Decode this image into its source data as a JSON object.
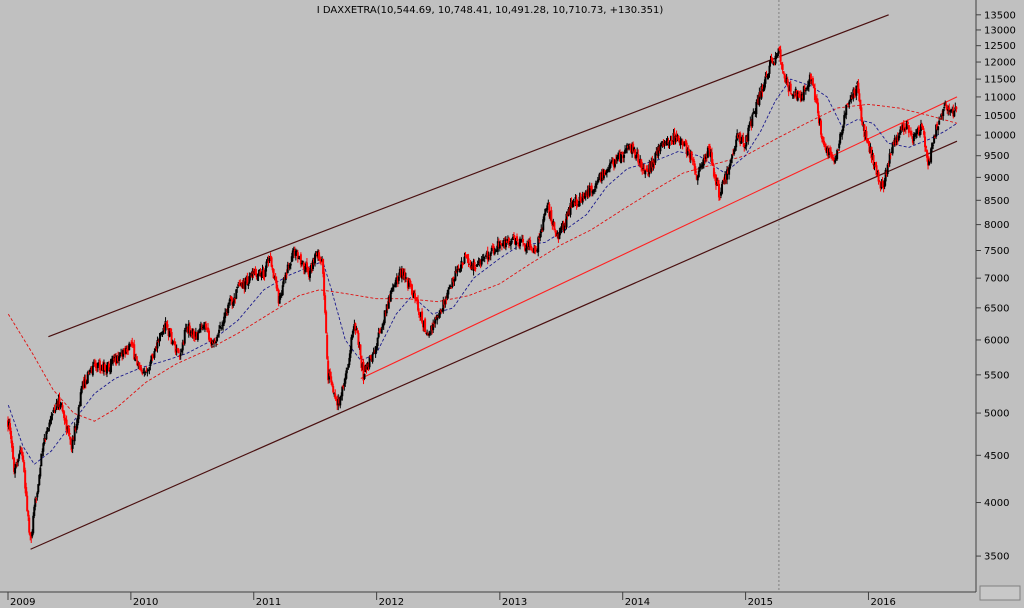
{
  "chart_data": {
    "type": "candlestick",
    "title": "I DAXXETRA(10,544.69, 10,748.41, 10,491.28, 10,710.73, +130.351)",
    "x_tick_labels": [
      "2009",
      "2010",
      "2011",
      "2012",
      "2013",
      "2014",
      "2015",
      "2016"
    ],
    "y_tick_labels": [
      "3500",
      "4000",
      "4500",
      "5000",
      "5500",
      "6000",
      "6500",
      "7000",
      "7500",
      "8000",
      "8500",
      "9000",
      "9500",
      "10000",
      "10500",
      "11000",
      "11500",
      "12000",
      "12500",
      "13000",
      "13500"
    ],
    "y_scale": "log",
    "ylim": [
      3200,
      13800
    ],
    "x_range": [
      "2009-01-01",
      "2016-09-20"
    ],
    "grid": false,
    "colors": {
      "background": "#c0c0c0",
      "up_candle": "#000000",
      "down_candle": "#ff0000",
      "ma_short": "#1a1a8c",
      "ma_long": "#e01010",
      "channel_line": "#4a1010",
      "support_line": "#ff2020",
      "marker_line": "#808080"
    },
    "series": [
      {
        "name": "",
        "role": "close_path",
        "points": [
          [
            "2009-01-02",
            4900
          ],
          [
            "2009-01-20",
            4350
          ],
          [
            "2009-02-10",
            4600
          ],
          [
            "2009-03-09",
            3600
          ],
          [
            "2009-03-25",
            4050
          ],
          [
            "2009-04-15",
            4600
          ],
          [
            "2009-05-10",
            5000
          ],
          [
            "2009-06-05",
            5150
          ],
          [
            "2009-07-10",
            4600
          ],
          [
            "2009-08-10",
            5350
          ],
          [
            "2009-09-15",
            5650
          ],
          [
            "2009-10-20",
            5600
          ],
          [
            "2009-11-15",
            5700
          ],
          [
            "2009-12-31",
            5950
          ],
          [
            "2010-02-05",
            5450
          ],
          [
            "2010-04-15",
            6250
          ],
          [
            "2010-05-25",
            5700
          ],
          [
            "2010-06-15",
            6200
          ],
          [
            "2010-07-15",
            6050
          ],
          [
            "2010-08-10",
            6300
          ],
          [
            "2010-08-31",
            5900
          ],
          [
            "2010-10-15",
            6500
          ],
          [
            "2010-11-15",
            6800
          ],
          [
            "2010-12-31",
            7050
          ],
          [
            "2011-01-31",
            7100
          ],
          [
            "2011-02-18",
            7400
          ],
          [
            "2011-03-16",
            6650
          ],
          [
            "2011-04-15",
            7200
          ],
          [
            "2011-05-02",
            7500
          ],
          [
            "2011-06-15",
            7100
          ],
          [
            "2011-07-08",
            7450
          ],
          [
            "2011-07-25",
            7250
          ],
          [
            "2011-08-09",
            5500
          ],
          [
            "2011-09-12",
            5100
          ],
          [
            "2011-10-10",
            5700
          ],
          [
            "2011-10-27",
            6300
          ],
          [
            "2011-11-23",
            5500
          ],
          [
            "2011-12-30",
            5900
          ],
          [
            "2012-02-15",
            6800
          ],
          [
            "2012-03-16",
            7150
          ],
          [
            "2012-04-20",
            6700
          ],
          [
            "2012-06-01",
            6050
          ],
          [
            "2012-07-10",
            6450
          ],
          [
            "2012-08-15",
            6950
          ],
          [
            "2012-09-15",
            7350
          ],
          [
            "2012-10-20",
            7200
          ],
          [
            "2012-12-31",
            7600
          ],
          [
            "2013-02-15",
            7700
          ],
          [
            "2013-04-18",
            7500
          ],
          [
            "2013-05-22",
            8400
          ],
          [
            "2013-06-24",
            7700
          ],
          [
            "2013-08-01",
            8400
          ],
          [
            "2013-09-15",
            8600
          ],
          [
            "2013-11-15",
            9200
          ],
          [
            "2013-12-31",
            9550
          ],
          [
            "2014-01-21",
            9750
          ],
          [
            "2014-03-14",
            9100
          ],
          [
            "2014-04-15",
            9600
          ],
          [
            "2014-06-10",
            10000
          ],
          [
            "2014-07-31",
            9400
          ],
          [
            "2014-08-08",
            9000
          ],
          [
            "2014-09-15",
            9650
          ],
          [
            "2014-10-15",
            8600
          ],
          [
            "2014-11-15",
            9300
          ],
          [
            "2014-12-05",
            10000
          ],
          [
            "2014-12-31",
            9800
          ],
          [
            "2015-01-31",
            10700
          ],
          [
            "2015-03-15",
            11900
          ],
          [
            "2015-04-10",
            12350
          ],
          [
            "2015-05-05",
            11300
          ],
          [
            "2015-06-15",
            11000
          ],
          [
            "2015-07-15",
            11600
          ],
          [
            "2015-08-24",
            9650
          ],
          [
            "2015-09-24",
            9400
          ],
          [
            "2015-10-31",
            10900
          ],
          [
            "2015-11-30",
            11300
          ],
          [
            "2015-12-15",
            10200
          ],
          [
            "2016-01-20",
            9300
          ],
          [
            "2016-02-11",
            8750
          ],
          [
            "2016-03-15",
            9800
          ],
          [
            "2016-04-20",
            10300
          ],
          [
            "2016-05-15",
            9900
          ],
          [
            "2016-06-08",
            10200
          ],
          [
            "2016-06-27",
            9250
          ],
          [
            "2016-07-20",
            10150
          ],
          [
            "2016-08-15",
            10700
          ],
          [
            "2016-09-05",
            10500
          ],
          [
            "2016-09-20",
            10710
          ]
        ]
      },
      {
        "name": "",
        "role": "moving_average_short",
        "points": [
          [
            "2009-01-02",
            5100
          ],
          [
            "2009-02-15",
            4600
          ],
          [
            "2009-03-20",
            4400
          ],
          [
            "2009-05-10",
            4550
          ],
          [
            "2009-07-15",
            4900
          ],
          [
            "2009-09-15",
            5250
          ],
          [
            "2009-11-15",
            5450
          ],
          [
            "2010-02-01",
            5600
          ],
          [
            "2010-04-15",
            5700
          ],
          [
            "2010-06-15",
            5800
          ],
          [
            "2010-09-01",
            6000
          ],
          [
            "2010-11-15",
            6300
          ],
          [
            "2011-01-31",
            6800
          ],
          [
            "2011-04-15",
            7050
          ],
          [
            "2011-06-15",
            7200
          ],
          [
            "2011-07-25",
            7300
          ],
          [
            "2011-08-20",
            6800
          ],
          [
            "2011-09-30",
            6000
          ],
          [
            "2011-11-15",
            5700
          ],
          [
            "2011-12-31",
            5800
          ],
          [
            "2012-02-28",
            6400
          ],
          [
            "2012-04-15",
            6700
          ],
          [
            "2012-06-15",
            6400
          ],
          [
            "2012-08-15",
            6500
          ],
          [
            "2012-10-15",
            7000
          ],
          [
            "2012-12-31",
            7350
          ],
          [
            "2013-03-01",
            7600
          ],
          [
            "2013-05-15",
            7650
          ],
          [
            "2013-07-15",
            7900
          ],
          [
            "2013-09-15",
            8200
          ],
          [
            "2013-11-15",
            8800
          ],
          [
            "2014-01-15",
            9200
          ],
          [
            "2014-04-15",
            9400
          ],
          [
            "2014-06-15",
            9600
          ],
          [
            "2014-08-15",
            9500
          ],
          [
            "2014-10-31",
            9100
          ],
          [
            "2014-12-31",
            9500
          ],
          [
            "2015-02-15",
            10100
          ],
          [
            "2015-03-31",
            10900
          ],
          [
            "2015-05-15",
            11500
          ],
          [
            "2015-07-15",
            11300
          ],
          [
            "2015-08-31",
            11000
          ],
          [
            "2015-10-15",
            10200
          ],
          [
            "2015-11-30",
            10400
          ],
          [
            "2016-01-15",
            10300
          ],
          [
            "2016-02-28",
            9800
          ],
          [
            "2016-04-30",
            9700
          ],
          [
            "2016-06-30",
            9900
          ],
          [
            "2016-08-15",
            10100
          ],
          [
            "2016-09-20",
            10300
          ]
        ]
      },
      {
        "name": "",
        "role": "moving_average_long",
        "points": [
          [
            "2009-01-02",
            6400
          ],
          [
            "2009-03-15",
            5800
          ],
          [
            "2009-05-15",
            5300
          ],
          [
            "2009-07-15",
            5000
          ],
          [
            "2009-09-15",
            4900
          ],
          [
            "2009-11-15",
            5050
          ],
          [
            "2010-02-15",
            5400
          ],
          [
            "2010-05-15",
            5650
          ],
          [
            "2010-08-15",
            5850
          ],
          [
            "2010-11-15",
            6100
          ],
          [
            "2011-02-15",
            6400
          ],
          [
            "2011-05-15",
            6700
          ],
          [
            "2011-07-15",
            6800
          ],
          [
            "2011-09-15",
            6750
          ],
          [
            "2011-12-31",
            6650
          ],
          [
            "2012-03-31",
            6650
          ],
          [
            "2012-06-30",
            6600
          ],
          [
            "2012-09-30",
            6700
          ],
          [
            "2012-12-31",
            6900
          ],
          [
            "2013-03-31",
            7250
          ],
          [
            "2013-06-30",
            7600
          ],
          [
            "2013-09-30",
            7900
          ],
          [
            "2013-12-31",
            8300
          ],
          [
            "2014-03-31",
            8700
          ],
          [
            "2014-06-30",
            9100
          ],
          [
            "2014-09-30",
            9300
          ],
          [
            "2014-12-31",
            9500
          ],
          [
            "2015-03-31",
            9900
          ],
          [
            "2015-06-30",
            10300
          ],
          [
            "2015-09-30",
            10700
          ],
          [
            "2015-12-31",
            10800
          ],
          [
            "2016-03-31",
            10700
          ],
          [
            "2016-06-30",
            10500
          ],
          [
            "2016-09-20",
            10300
          ]
        ]
      }
    ],
    "annotations": {
      "upper_channel": [
        [
          "2009-05-01",
          6050
        ],
        [
          "2016-03-01",
          13500
        ]
      ],
      "lower_channel": [
        [
          "2009-03-09",
          3560
        ],
        [
          "2016-09-20",
          9850
        ]
      ],
      "support_line": [
        [
          "2011-11-15",
          5450
        ],
        [
          "2016-09-20",
          11000
        ]
      ],
      "vertical_marker_date": "2015-04-10"
    }
  }
}
